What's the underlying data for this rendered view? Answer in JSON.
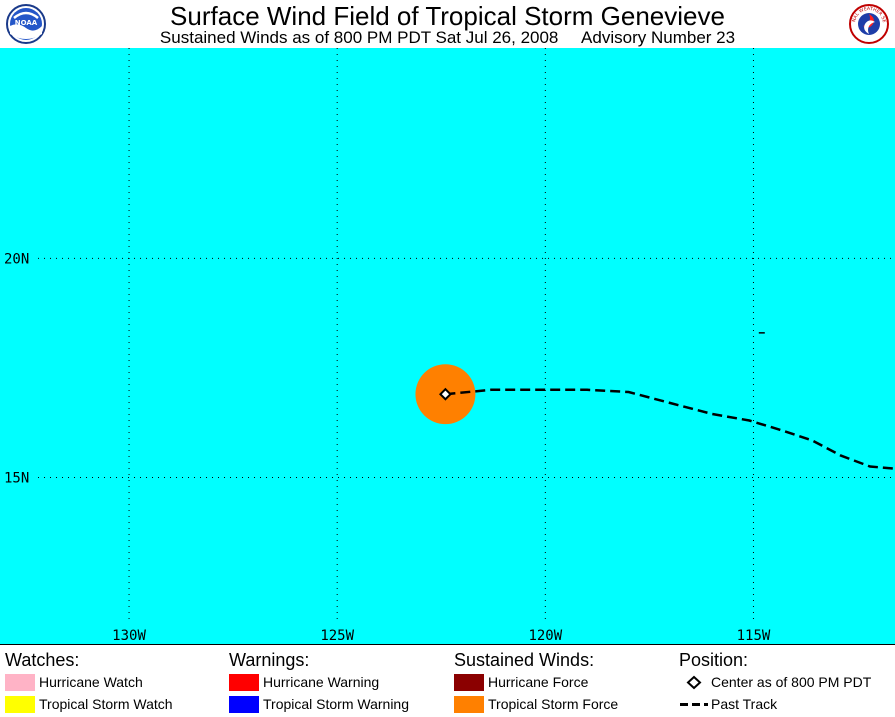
{
  "header": {
    "title": "Surface Wind Field of Tropical Storm Genevieve",
    "subtitle": "Sustained Winds as of 800 PM PDT Sat Jul 26, 2008     Advisory Number 23",
    "logo_left": "noaa-logo",
    "logo_right": "national-weather-service-logo",
    "logo_left_text": "NOAA",
    "logo_right_text": "NATIONAL WEATHER SERVICE"
  },
  "map": {
    "ocean_color": "#00ffff",
    "lon_range": [
      -133.1,
      -111.6
    ],
    "lat_range": [
      11.2,
      24.8
    ],
    "meridians": [
      {
        "lon": -130,
        "label": "130W"
      },
      {
        "lon": -125,
        "label": "125W"
      },
      {
        "lon": -120,
        "label": "120W"
      },
      {
        "lon": -115,
        "label": "115W"
      }
    ],
    "parallels": [
      {
        "lat": 20,
        "label": "20N"
      },
      {
        "lat": 15,
        "label": "15N"
      }
    ],
    "storm_center": {
      "lon": -122.4,
      "lat": 16.9
    },
    "tropical_storm_force_radius_deg": 0.72,
    "tropical_storm_force_color": "#ff8000",
    "past_track": [
      [
        -122.4,
        16.9
      ],
      [
        -121.3,
        17.0
      ],
      [
        -120.3,
        17.0
      ],
      [
        -119.0,
        17.0
      ],
      [
        -118.0,
        16.95
      ],
      [
        -117.0,
        16.7
      ],
      [
        -116.0,
        16.45
      ],
      [
        -115.1,
        16.3
      ],
      [
        -114.4,
        16.1
      ],
      [
        -113.6,
        15.85
      ],
      [
        -112.9,
        15.5
      ],
      [
        -112.2,
        15.25
      ],
      [
        -111.6,
        15.2
      ]
    ],
    "small_mark": {
      "lon": -114.8,
      "lat": 18.3
    }
  },
  "legend": {
    "watches": {
      "heading": "Watches:",
      "items": [
        {
          "label": "Hurricane Watch",
          "color": "#ffb3c6"
        },
        {
          "label": "Tropical Storm Watch",
          "color": "#ffff00"
        }
      ]
    },
    "warnings": {
      "heading": "Warnings:",
      "items": [
        {
          "label": "Hurricane Warning",
          "color": "#ff0000"
        },
        {
          "label": "Tropical Storm Warning",
          "color": "#0000ff"
        }
      ]
    },
    "winds": {
      "heading": "Sustained Winds:",
      "items": [
        {
          "label": "Hurricane Force",
          "color": "#8b0000"
        },
        {
          "label": "Tropical Storm Force",
          "color": "#ff8000"
        }
      ]
    },
    "position": {
      "heading": "Position:",
      "center_label": "Center as of 800 PM PDT",
      "track_label": "Past Track",
      "center_icon": "diamond-marker-icon",
      "track_icon": "dashed-line-icon"
    }
  }
}
